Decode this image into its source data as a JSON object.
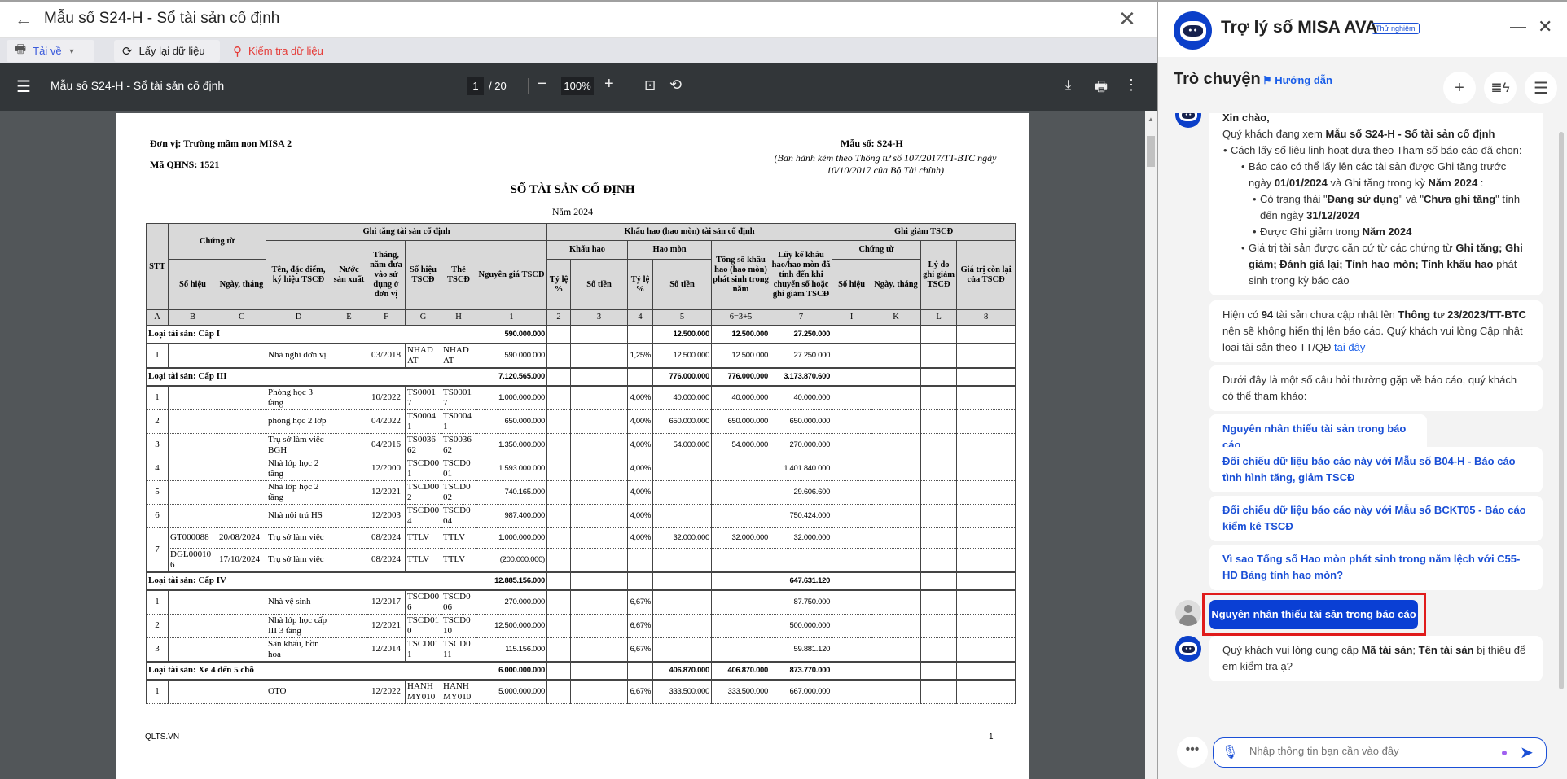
{
  "window": {
    "title": "Mẫu số S24-H - Sổ tài sản cố định"
  },
  "toolbar": {
    "download_label": "Tải về",
    "reload_label": "Lấy lại dữ liệu",
    "check_label": "Kiểm tra dữ liệu"
  },
  "pdf": {
    "title": "Mẫu số S24-H - Sổ tài sản cố định",
    "page": "1",
    "total": "/ 20",
    "zoom": "100%"
  },
  "report": {
    "unit": "Đơn vị: Trường mầm non MISA 2",
    "qhns": "Mã QHNS: 1521",
    "form": "Mẫu số: S24-H",
    "issued": "(Ban hành kèm theo Thông tư số 107/2017/TT-BTC ngày 10/10/2017 của Bộ Tài chính)",
    "title": "SỔ TÀI SẢN CỐ ĐỊNH",
    "year": "Năm 2024",
    "footer_left": "QLTS.VN",
    "footer_right": "1",
    "header": {
      "stt": "STT",
      "chung_tu": "Chứng từ",
      "ghi_tang": "Ghi tăng tài sản cố định",
      "khau_hao_group": "Khấu hao (hao mòn) tài sản cố định",
      "ghi_giam": "Ghi giảm TSCĐ",
      "so_hieu": "Số hiệu",
      "ngay_thang": "Ngày, tháng",
      "ten": "Tên, đặc điểm, ký hiệu TSCĐ",
      "nuoc": "Nước sản xuất",
      "thang_nam": "Tháng, năm đưa vào sử dụng ở đơn vị",
      "so_hieu_tscd": "Số hiệu TSCĐ",
      "the": "Thẻ TSCĐ",
      "nguyen_gia": "Nguyên giá TSCĐ",
      "khau_hao": "Khấu hao",
      "hao_mon": "Hao mòn",
      "ty_le": "Tỷ lệ %",
      "so_tien": "Số tiền",
      "tong": "Tổng số khấu hao (hao mòn) phát sinh trong năm",
      "luy_ke": "Lũy kế khấu hao/hao mòn đã tính đến khi chuyển số hoặc ghi giảm TSCĐ",
      "gg_chung_tu": "Chứng từ",
      "gg_so_hieu": "Số hiệu",
      "gg_ngay": "Ngày, tháng",
      "ly_do": "Lý do ghi giảm TSCĐ",
      "gia_tri_con": "Giá trị còn lại của TSCĐ",
      "index": [
        "A",
        "B",
        "C",
        "D",
        "E",
        "F",
        "G",
        "H",
        "1",
        "2",
        "3",
        "4",
        "5",
        "6=3+5",
        "7",
        "I",
        "K",
        "L",
        "8"
      ]
    },
    "groups": [
      {
        "label": "Loại tài sản: Cấp I",
        "nguyen_gia": "590.000.000",
        "hm_so_tien": "12.500.000",
        "tong": "12.500.000",
        "luy_ke": "27.250.000",
        "items": [
          {
            "stt": "1",
            "rows": [
              [
                "",
                "",
                "Nhà nghỉ đơn vị",
                "",
                "03/2018",
                "NHAD AT",
                "NHAD AT",
                "590.000.000",
                "",
                "",
                "1,25%",
                "12.500.000",
                "12.500.000",
                "27.250.000"
              ]
            ]
          }
        ]
      },
      {
        "label": "Loại tài sản: Cấp III",
        "nguyen_gia": "7.120.565.000",
        "hm_so_tien": "776.000.000",
        "tong": "776.000.000",
        "luy_ke": "3.173.870.600",
        "items": [
          {
            "stt": "1",
            "rows": [
              [
                "",
                "",
                "Phòng học 3 tầng",
                "",
                "10/2022",
                "TS0001 7",
                "TS0001 7",
                "1.000.000.000",
                "",
                "",
                "4,00%",
                "40.000.000",
                "40.000.000",
                "40.000.000"
              ]
            ]
          },
          {
            "stt": "2",
            "rows": [
              [
                "",
                "",
                "phòng học 2 lớp",
                "",
                "04/2022",
                "TS0004 1",
                "TS0004 1",
                "650.000.000",
                "",
                "",
                "4,00%",
                "650.000.000",
                "650.000.000",
                "650.000.000"
              ]
            ]
          },
          {
            "stt": "3",
            "rows": [
              [
                "",
                "",
                "Trụ sở làm việc BGH",
                "",
                "04/2016",
                "TS0036 62",
                "TS0036 62",
                "1.350.000.000",
                "",
                "",
                "4,00%",
                "54.000.000",
                "54.000.000",
                "270.000.000"
              ]
            ]
          },
          {
            "stt": "4",
            "rows": [
              [
                "",
                "",
                "Nhà lớp học 2 tầng",
                "",
                "12/2000",
                "TSCD00 1",
                "TSCD0 01",
                "1.593.000.000",
                "",
                "",
                "4,00%",
                "",
                "",
                "1.401.840.000"
              ]
            ]
          },
          {
            "stt": "5",
            "rows": [
              [
                "",
                "",
                "Nhà lớp học 2 tầng",
                "",
                "12/2021",
                "TSCD00 2",
                "TSCD0 02",
                "740.165.000",
                "",
                "",
                "4,00%",
                "",
                "",
                "29.606.600"
              ]
            ]
          },
          {
            "stt": "6",
            "rows": [
              [
                "",
                "",
                "Nhà nội trú HS",
                "",
                "12/2003",
                "TSCD00 4",
                "TSCD0 04",
                "987.400.000",
                "",
                "",
                "4,00%",
                "",
                "",
                "750.424.000"
              ]
            ]
          },
          {
            "stt": "7",
            "rows": [
              [
                "GT000088",
                "20/08/2024",
                "Trụ sở làm việc",
                "",
                "08/2024",
                "TTLV",
                "TTLV",
                "1.000.000.000",
                "",
                "",
                "4,00%",
                "32.000.000",
                "32.000.000",
                "32.000.000"
              ],
              [
                "DGL00010 6",
                "17/10/2024",
                "Trụ sở làm việc",
                "",
                "08/2024",
                "TTLV",
                "TTLV",
                "(200.000.000)",
                "",
                "",
                "",
                "",
                "",
                ""
              ]
            ]
          }
        ]
      },
      {
        "label": "Loại tài sản: Cấp IV",
        "nguyen_gia": "12.885.156.000",
        "hm_so_tien": "",
        "tong": "",
        "luy_ke": "647.631.120",
        "items": [
          {
            "stt": "1",
            "rows": [
              [
                "",
                "",
                "Nhà vệ sinh",
                "",
                "12/2017",
                "TSCD00 6",
                "TSCD0 06",
                "270.000.000",
                "",
                "",
                "6,67%",
                "",
                "",
                "87.750.000"
              ]
            ]
          },
          {
            "stt": "2",
            "rows": [
              [
                "",
                "",
                "Nhà lớp học cấp III 3 tầng",
                "",
                "12/2021",
                "TSCD01 0",
                "TSCD0 10",
                "12.500.000.000",
                "",
                "",
                "6,67%",
                "",
                "",
                "500.000.000"
              ]
            ]
          },
          {
            "stt": "3",
            "rows": [
              [
                "",
                "",
                "Sân khấu, bồn hoa",
                "",
                "12/2014",
                "TSCD01 1",
                "TSCD0 11",
                "115.156.000",
                "",
                "",
                "6,67%",
                "",
                "",
                "59.881.120"
              ]
            ]
          }
        ]
      },
      {
        "label": "Loại tài sản: Xe 4 đến 5 chỗ",
        "nguyen_gia": "6.000.000.000",
        "hm_so_tien": "406.870.000",
        "tong": "406.870.000",
        "luy_ke": "873.770.000",
        "items": [
          {
            "stt": "1",
            "rows": [
              [
                "",
                "",
                "OTO",
                "",
                "12/2022",
                "HANH MY010",
                "HANH MY010",
                "5.000.000.000",
                "",
                "",
                "6,67%",
                "333.500.000",
                "333.500.000",
                "667.000.000"
              ]
            ]
          }
        ]
      }
    ]
  },
  "assistant": {
    "title": "Trợ lý số MISA AVA",
    "badge": "Thử nghiệm",
    "section": "Trò chuyện",
    "guide": "Hướng dẫn",
    "messages": [
      {
        "lines": [
          {
            "level": 0,
            "parts": [
              {
                "t": "Xin chào,",
                "b": true
              }
            ]
          },
          {
            "level": 0,
            "parts": [
              {
                "t": "Quý khách đang xem "
              },
              {
                "t": "Mẫu số S24-H - Sổ tài sản cố định",
                "b": true
              }
            ]
          },
          {
            "level": 1,
            "parts": [
              {
                "t": "Cách lấy số liệu linh hoạt dựa theo Tham số báo cáo đã chọn:"
              }
            ]
          },
          {
            "level": 2,
            "parts": [
              {
                "t": "Báo cáo có thể lấy lên các tài sản được Ghi tăng trước ngày "
              },
              {
                "t": "01/01/2024",
                "b": true
              },
              {
                "t": " và Ghi tăng trong kỳ "
              },
              {
                "t": "Năm 2024",
                "b": true
              },
              {
                "t": " :"
              }
            ]
          },
          {
            "level": 3,
            "parts": [
              {
                "t": "Có trạng thái \""
              },
              {
                "t": "Đang sử dụng",
                "b": true
              },
              {
                "t": "\" và \""
              },
              {
                "t": "Chưa ghi tăng",
                "b": true
              },
              {
                "t": "\" tính đến ngày "
              },
              {
                "t": "31/12/2024",
                "b": true
              }
            ]
          },
          {
            "level": 3,
            "parts": [
              {
                "t": "Được Ghi giảm trong "
              },
              {
                "t": "Năm 2024",
                "b": true
              }
            ]
          },
          {
            "level": 2,
            "parts": [
              {
                "t": "Giá trị tài sản được căn cứ từ các chứng từ "
              },
              {
                "t": "Ghi tăng; Ghi giảm; Đánh giá lại; Tính hao mòn; Tính khấu hao",
                "b": true
              },
              {
                "t": " phát sinh trong kỳ báo cáo"
              }
            ]
          }
        ]
      },
      {
        "lines": [
          {
            "level": 0,
            "parts": [
              {
                "t": "Hiện có "
              },
              {
                "t": "94",
                "b": true
              },
              {
                "t": " tài sản chưa cập nhật lên "
              },
              {
                "t": "Thông tư 23/2023/TT-BTC",
                "b": true
              },
              {
                "t": " nên sẽ không hiển thị lên báo cáo. Quý khách vui lòng Cập nhật loại tài sản theo TT/QĐ "
              },
              {
                "t": "tại đây",
                "link": true
              }
            ]
          }
        ]
      },
      {
        "lines": [
          {
            "level": 0,
            "parts": [
              {
                "t": "Dưới đây là một số câu hỏi thường gặp về báo cáo, quý khách có thể tham khảo:"
              }
            ]
          }
        ]
      }
    ],
    "suggestions": [
      "Nguyên nhân thiếu tài sản trong báo cáo",
      "Đối chiếu dữ liệu báo cáo này với Mẫu số B04-H - Báo cáo tình hình tăng, giảm TSCĐ",
      "Đối chiếu dữ liệu báo cáo này với Mẫu số BCKT05 - Báo cáo kiểm kê TSCĐ",
      "Vì sao Tổng số Hao mòn phát sinh trong năm lệch với C55-HD Bảng tính hao mòn?"
    ],
    "user_message": "Nguyên nhân thiếu tài sản trong báo cáo",
    "reply": [
      {
        "t": "Quý khách vui lòng cung cấp "
      },
      {
        "t": "Mã tài sản",
        "b": true
      },
      {
        "t": "; "
      },
      {
        "t": "Tên tài sản",
        "b": true
      },
      {
        "t": " bị thiếu để em kiểm tra ạ?"
      }
    ],
    "input_placeholder": "Nhập thông tin bạn cần vào đây"
  }
}
